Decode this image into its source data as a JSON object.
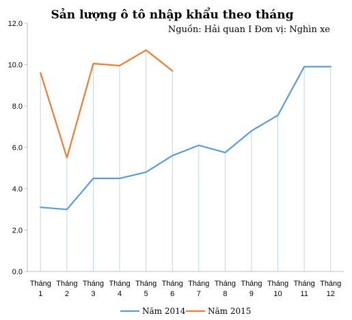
{
  "chart_data": {
    "type": "line",
    "title": "Sản lượng ô tô nhập khẩu theo tháng",
    "subtitle": "Nguồn:  Hải quan I Đơn vị:  Nghìn  xe",
    "xlabel": "",
    "ylabel": "",
    "categories": [
      [
        "Tháng",
        "1"
      ],
      [
        "Tháng",
        "2"
      ],
      [
        "Tháng",
        "3"
      ],
      [
        "Tháng",
        "4"
      ],
      [
        "Tháng",
        "5"
      ],
      [
        "Tháng",
        "6"
      ],
      [
        "Tháng",
        "7"
      ],
      [
        "Tháng",
        "8"
      ],
      [
        "Tháng",
        "9"
      ],
      [
        "Tháng",
        "10"
      ],
      [
        "Tháng",
        "11"
      ],
      [
        "Tháng",
        "12"
      ]
    ],
    "ylim": [
      0,
      12
    ],
    "yticks": [
      0,
      2,
      4,
      6,
      8,
      10,
      12
    ],
    "ytick_labels": [
      "0.0",
      "2.0",
      "4.0",
      "6.0",
      "8.0",
      "10.0",
      "12.0"
    ],
    "grid": false,
    "drop_lines": true,
    "legend_position": "bottom",
    "series": [
      {
        "name": "Năm 2014",
        "color": "#5B9BD5",
        "values": [
          3.1,
          3.0,
          4.5,
          4.5,
          4.8,
          5.6,
          6.1,
          5.75,
          6.8,
          7.55,
          9.9,
          9.9
        ]
      },
      {
        "name": "Năm 2015",
        "color": "#ED7D31",
        "values": [
          9.6,
          5.5,
          10.05,
          9.95,
          10.7,
          9.7,
          null,
          null,
          null,
          null,
          null,
          null
        ]
      }
    ]
  }
}
